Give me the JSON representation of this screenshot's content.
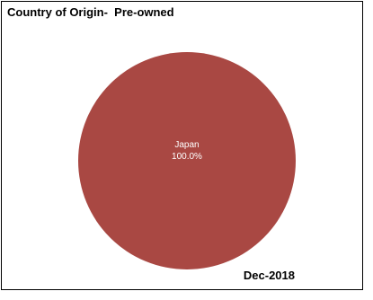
{
  "chart_data": {
    "type": "pie",
    "title": "Country of Origin-  Pre-owned",
    "footer": "Dec-2018",
    "slices": [
      {
        "label": "Japan",
        "value": 100.0,
        "percent_label": "100.0%",
        "color": "#a94843"
      }
    ],
    "legend": "none",
    "label_color": "#ffffff"
  }
}
